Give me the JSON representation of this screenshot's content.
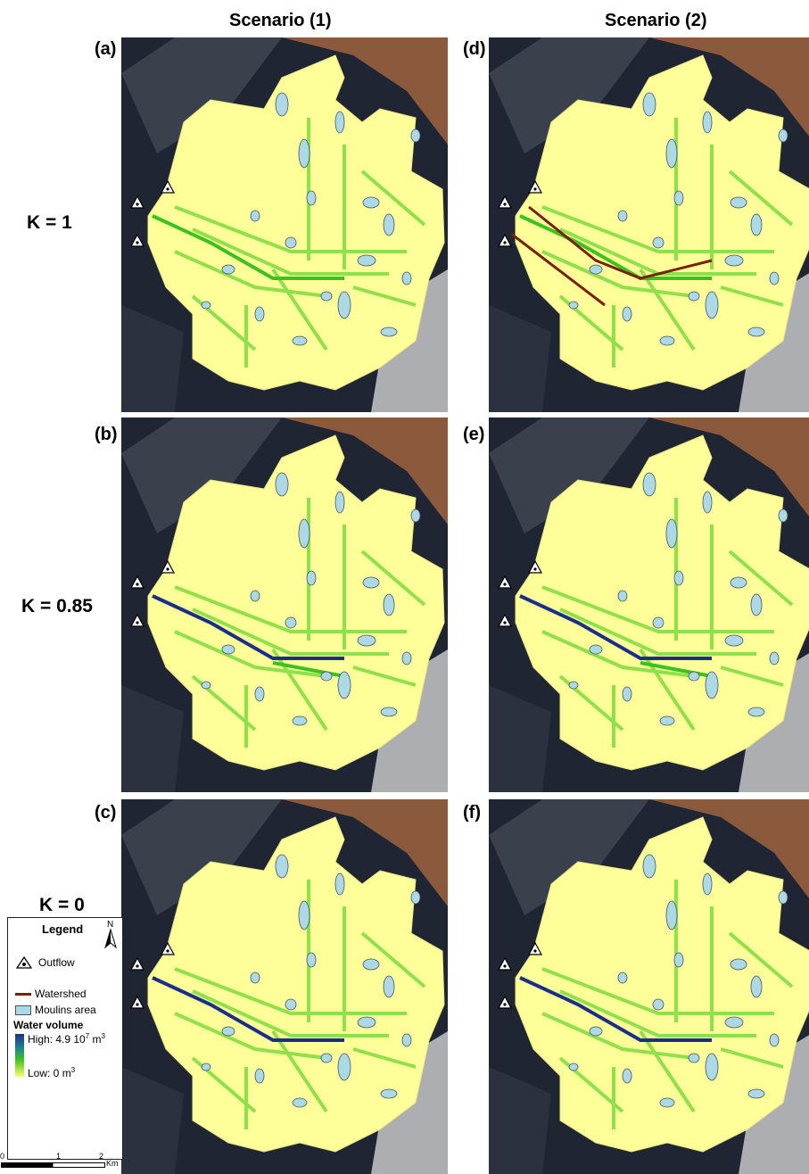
{
  "columns": {
    "left": "Scenario (1)",
    "right": "Scenario (2)"
  },
  "rows": [
    {
      "label": "K = 1"
    },
    {
      "label": "K = 0.85"
    },
    {
      "label": "K = 0"
    }
  ],
  "panels": [
    {
      "letter": "(a)",
      "scenario": 1,
      "k": "1"
    },
    {
      "letter": "(b)",
      "scenario": 1,
      "k": "0.85"
    },
    {
      "letter": "(c)",
      "scenario": 1,
      "k": "0"
    },
    {
      "letter": "(d)",
      "scenario": 2,
      "k": "1"
    },
    {
      "letter": "(e)",
      "scenario": 2,
      "k": "0.85"
    },
    {
      "letter": "(f)",
      "scenario": 2,
      "k": "0"
    }
  ],
  "legend": {
    "title": "Legend",
    "north": "N",
    "outflow": "Outflow",
    "watershed": "Watershed",
    "moulins": "Moulins area",
    "water_volume": "Water volume",
    "high": "High: 4.9 10",
    "high_exp": "7",
    "high_unit": "m",
    "high_unit_exp": "3",
    "low": "Low: 0 m",
    "low_exp": "3"
  },
  "scale": {
    "ticks": [
      "0",
      "1",
      "2"
    ],
    "unit": "Km"
  },
  "colors": {
    "glacier": "#ffff99",
    "flow_light": "#8fe04a",
    "flow_mid": "#3cc21f",
    "flow_high": "#1a2f8a",
    "moulins": "#add8e6",
    "watershed": "#7a1f0a",
    "rock_dark": "#1f2533",
    "snow": "#dcdcdc",
    "brown": "#8b5a3c"
  }
}
